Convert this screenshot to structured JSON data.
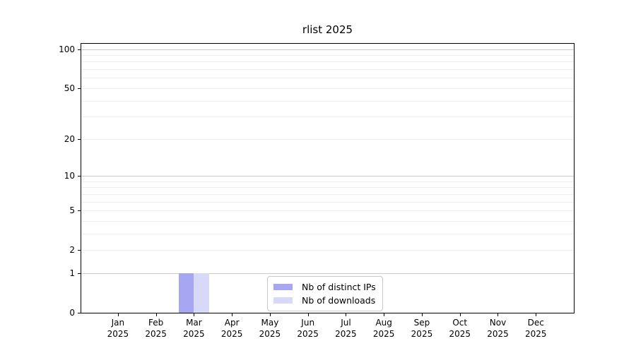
{
  "chart_data": {
    "type": "bar",
    "title": "rlist 2025",
    "categories": [
      "Jan",
      "Feb",
      "Mar",
      "Apr",
      "May",
      "Jun",
      "Jul",
      "Aug",
      "Sep",
      "Oct",
      "Nov",
      "Dec"
    ],
    "category_year": "2025",
    "series": [
      {
        "name": "Nb of distinct IPs",
        "color": "#a6a6f2",
        "values": [
          0,
          0,
          1,
          0,
          0,
          0,
          0,
          0,
          0,
          0,
          0,
          0
        ]
      },
      {
        "name": "Nb of downloads",
        "color": "#d8d8f8",
        "values": [
          0,
          0,
          1,
          0,
          0,
          0,
          0,
          0,
          0,
          0,
          0,
          0
        ]
      }
    ],
    "y_scale": "log1p",
    "ylim": [
      0,
      110
    ],
    "y_tick_labels": [
      0,
      1,
      2,
      5,
      10,
      20,
      50,
      100
    ],
    "grid": true,
    "grid_major_values": [
      1,
      10,
      100
    ],
    "grid_minor_values": [
      2,
      3,
      4,
      5,
      6,
      7,
      8,
      9,
      20,
      30,
      40,
      50,
      60,
      70,
      80,
      90
    ],
    "legend_position": "bottom-center",
    "style": {
      "grid_major_color": "#c9c9c9",
      "grid_minor_color": "#ededed",
      "axis_color": "#000000",
      "legend_border_color": "#c9c9c9",
      "background_color": "#ffffff"
    }
  }
}
